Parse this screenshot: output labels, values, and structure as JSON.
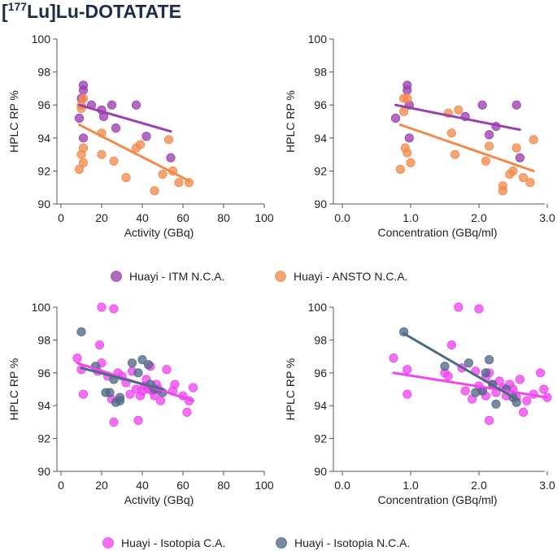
{
  "title": {
    "prefix": "[",
    "superscript": "177",
    "suffix": "Lu]Lu-DOTATATE"
  },
  "colors": {
    "ITM": "#9b3fb0",
    "ANSTO": "#f28a4b",
    "Isotopia_CA": "#f046f0",
    "Isotopia_NCA": "#4f6a86"
  },
  "legends": [
    {
      "items": [
        {
          "label": "Huayi - ITM N.C.A.",
          "color": "#9b3fb0"
        },
        {
          "label": "Huayi - ANSTO N.C.A.",
          "color": "#f28a4b"
        }
      ]
    },
    {
      "items": [
        {
          "label": "Huayi - Isotopia C.A.",
          "color": "#f046f0"
        },
        {
          "label": "Huayi - Isotopia N.C.A.",
          "color": "#4f6a86"
        }
      ]
    }
  ],
  "chart_data": [
    {
      "type": "scatter",
      "xlabel": "Activity (GBq)",
      "ylabel": "HPLC RP %",
      "xlim": [
        0,
        100
      ],
      "ylim": [
        90,
        100
      ],
      "xticks": [
        "0",
        "20",
        "40",
        "60",
        "80",
        "100"
      ],
      "yticks": [
        "90",
        "92",
        "94",
        "96",
        "98",
        "100"
      ],
      "series": [
        {
          "name": "Huayi - ITM N.C.A.",
          "color": "#9b3fb0",
          "points": [
            [
              9,
              95.2
            ],
            [
              10,
              96.4
            ],
            [
              11,
              97.2
            ],
            [
              11,
              96.9
            ],
            [
              11,
              94.0
            ],
            [
              15,
              96.0
            ],
            [
              20,
              95.7
            ],
            [
              21,
              95.3
            ],
            [
              25,
              96.0
            ],
            [
              27,
              94.6
            ],
            [
              37,
              96.0
            ],
            [
              42,
              94.1
            ],
            [
              54,
              92.8
            ]
          ],
          "trend": [
            [
              9,
              96.0
            ],
            [
              54,
              94.4
            ]
          ]
        },
        {
          "name": "Huayi - ANSTO N.C.A.",
          "color": "#f28a4b",
          "points": [
            [
              9,
              92.1
            ],
            [
              10,
              96.0
            ],
            [
              10,
              95.8
            ],
            [
              10,
              93.0
            ],
            [
              11,
              96.4
            ],
            [
              11,
              93.4
            ],
            [
              11,
              92.5
            ],
            [
              20,
              94.3
            ],
            [
              20,
              93.0
            ],
            [
              26,
              92.6
            ],
            [
              32,
              91.6
            ],
            [
              37,
              93.4
            ],
            [
              39,
              93.6
            ],
            [
              46,
              90.8
            ],
            [
              50,
              91.8
            ],
            [
              53,
              93.9
            ],
            [
              55,
              92.0
            ],
            [
              58,
              91.3
            ],
            [
              63,
              91.3
            ]
          ],
          "trend": [
            [
              9,
              94.8
            ],
            [
              63,
              91.4
            ]
          ]
        }
      ]
    },
    {
      "type": "scatter",
      "xlabel": "Concentration (GBq/ml)",
      "ylabel": "HPLC RP %",
      "xlim": [
        0,
        3
      ],
      "ylim": [
        90,
        100
      ],
      "xticks": [
        "0.0",
        "1.0",
        "2.0",
        "3.0"
      ],
      "yticks": [
        "90",
        "92",
        "94",
        "96",
        "98",
        "100"
      ],
      "series": [
        {
          "name": "Huayi - ITM N.C.A.",
          "color": "#9b3fb0",
          "points": [
            [
              0.78,
              95.2
            ],
            [
              0.95,
              97.2
            ],
            [
              0.95,
              96.9
            ],
            [
              0.98,
              96.0
            ],
            [
              0.98,
              94.0
            ],
            [
              1.8,
              95.3
            ],
            [
              2.05,
              96.0
            ],
            [
              2.15,
              94.2
            ],
            [
              2.25,
              94.7
            ],
            [
              2.55,
              96.0
            ],
            [
              2.6,
              92.8
            ]
          ],
          "trend": [
            [
              0.78,
              96.0
            ],
            [
              2.6,
              94.5
            ]
          ]
        },
        {
          "name": "Huayi - ANSTO N.C.A.",
          "color": "#f28a4b",
          "points": [
            [
              0.85,
              92.1
            ],
            [
              0.9,
              95.6
            ],
            [
              0.9,
              96.4
            ],
            [
              0.92,
              93.4
            ],
            [
              0.95,
              96.4
            ],
            [
              0.95,
              93.1
            ],
            [
              1.0,
              92.5
            ],
            [
              1.55,
              95.5
            ],
            [
              1.6,
              94.3
            ],
            [
              1.65,
              93.0
            ],
            [
              1.7,
              95.7
            ],
            [
              2.1,
              92.6
            ],
            [
              2.15,
              93.5
            ],
            [
              2.35,
              91.1
            ],
            [
              2.35,
              90.8
            ],
            [
              2.45,
              91.8
            ],
            [
              2.5,
              92.0
            ],
            [
              2.55,
              93.4
            ],
            [
              2.65,
              91.6
            ],
            [
              2.75,
              91.3
            ],
            [
              2.8,
              93.9
            ]
          ],
          "trend": [
            [
              0.85,
              94.8
            ],
            [
              2.8,
              92.0
            ]
          ]
        }
      ]
    },
    {
      "type": "scatter",
      "xlabel": "Activity (GBq)",
      "ylabel": "HPLC RP %",
      "xlim": [
        0,
        100
      ],
      "ylim": [
        90,
        100
      ],
      "xticks": [
        "0",
        "20",
        "40",
        "60",
        "80",
        "100"
      ],
      "yticks": [
        "90",
        "92",
        "94",
        "96",
        "98",
        "100"
      ],
      "series": [
        {
          "name": "Huayi - Isotopia C.A.",
          "color": "#f046f0",
          "points": [
            [
              8,
              96.9
            ],
            [
              10,
              96.2
            ],
            [
              11,
              94.7
            ],
            [
              18,
              96.1
            ],
            [
              19,
              97.7
            ],
            [
              20,
              100.0
            ],
            [
              20,
              96.6
            ],
            [
              23,
              95.8
            ],
            [
              25,
              94.4
            ],
            [
              26,
              99.9
            ],
            [
              26,
              93.0
            ],
            [
              28,
              96.0
            ],
            [
              30,
              95.8
            ],
            [
              32,
              95.4
            ],
            [
              34,
              94.7
            ],
            [
              35,
              96.1
            ],
            [
              37,
              95.0
            ],
            [
              38,
              93.1
            ],
            [
              39,
              94.6
            ],
            [
              40,
              94.9
            ],
            [
              41,
              95.2
            ],
            [
              42,
              95.6
            ],
            [
              43,
              95.0
            ],
            [
              44,
              96.4
            ],
            [
              45,
              94.9
            ],
            [
              46,
              94.6
            ],
            [
              47,
              95.3
            ],
            [
              48,
              95.0
            ],
            [
              49,
              94.3
            ],
            [
              52,
              96.2
            ],
            [
              55,
              94.9
            ],
            [
              56,
              95.3
            ],
            [
              60,
              94.6
            ],
            [
              62,
              93.6
            ],
            [
              63,
              94.3
            ],
            [
              65,
              95.1
            ]
          ],
          "trend": [
            [
              8,
              96.6
            ],
            [
              65,
              94.3
            ]
          ]
        },
        {
          "name": "Huayi - Isotopia N.C.A.",
          "color": "#4f6a86",
          "points": [
            [
              10,
              98.5
            ],
            [
              17,
              96.4
            ],
            [
              22,
              94.8
            ],
            [
              24,
              94.8
            ],
            [
              26,
              95.6
            ],
            [
              27,
              94.2
            ],
            [
              29,
              94.5
            ],
            [
              29,
              94.3
            ],
            [
              35,
              96.6
            ],
            [
              38,
              96.0
            ],
            [
              40,
              96.8
            ],
            [
              43,
              96.5
            ],
            [
              44,
              95.3
            ],
            [
              46,
              95.0
            ],
            [
              50,
              94.8
            ]
          ],
          "trend": [
            [
              10,
              96.3
            ],
            [
              50,
              95.0
            ]
          ]
        }
      ]
    },
    {
      "type": "scatter",
      "xlabel": "Concentration (GBq/ml)",
      "ylabel": "HPLC RP %",
      "xlim": [
        0,
        3
      ],
      "ylim": [
        90,
        100
      ],
      "xticks": [
        "0.0",
        "1.0",
        "2.0",
        "3.0"
      ],
      "yticks": [
        "90",
        "92",
        "94",
        "96",
        "98",
        "100"
      ],
      "series": [
        {
          "name": "Huayi - Isotopia C.A.",
          "color": "#f046f0",
          "points": [
            [
              0.75,
              96.9
            ],
            [
              0.95,
              96.2
            ],
            [
              0.95,
              94.7
            ],
            [
              1.5,
              96.0
            ],
            [
              1.55,
              95.8
            ],
            [
              1.6,
              97.7
            ],
            [
              1.7,
              100.0
            ],
            [
              1.75,
              96.3
            ],
            [
              1.8,
              94.9
            ],
            [
              1.9,
              94.4
            ],
            [
              1.95,
              96.1
            ],
            [
              2.0,
              99.9
            ],
            [
              2.0,
              95.2
            ],
            [
              2.05,
              94.9
            ],
            [
              2.1,
              95.7
            ],
            [
              2.1,
              94.6
            ],
            [
              2.15,
              93.1
            ],
            [
              2.15,
              96.0
            ],
            [
              2.2,
              95.3
            ],
            [
              2.25,
              94.8
            ],
            [
              2.3,
              95.5
            ],
            [
              2.35,
              95.1
            ],
            [
              2.4,
              94.6
            ],
            [
              2.45,
              95.3
            ],
            [
              2.5,
              95.0
            ],
            [
              2.55,
              94.5
            ],
            [
              2.6,
              95.6
            ],
            [
              2.65,
              93.6
            ],
            [
              2.7,
              94.3
            ],
            [
              2.8,
              94.7
            ],
            [
              2.9,
              96.0
            ],
            [
              2.95,
              95.0
            ],
            [
              3.0,
              94.5
            ]
          ],
          "trend": [
            [
              0.75,
              96.0
            ],
            [
              3.0,
              94.5
            ]
          ]
        },
        {
          "name": "Huayi - Isotopia N.C.A.",
          "color": "#4f6a86",
          "points": [
            [
              0.9,
              98.5
            ],
            [
              1.5,
              96.4
            ],
            [
              1.85,
              96.6
            ],
            [
              1.95,
              94.8
            ],
            [
              2.05,
              94.9
            ],
            [
              2.1,
              96.0
            ],
            [
              2.15,
              96.8
            ],
            [
              2.2,
              95.3
            ],
            [
              2.25,
              94.1
            ],
            [
              2.4,
              95.0
            ],
            [
              2.5,
              94.5
            ],
            [
              2.55,
              94.2
            ]
          ],
          "trend": [
            [
              0.9,
              98.4
            ],
            [
              2.55,
              94.4
            ]
          ]
        }
      ]
    }
  ]
}
